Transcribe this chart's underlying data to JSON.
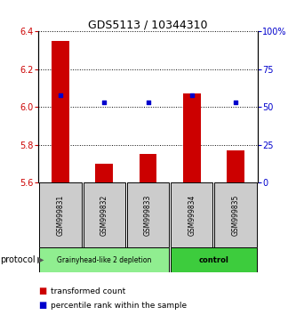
{
  "title": "GDS5113 / 10344310",
  "samples": [
    "GSM999831",
    "GSM999832",
    "GSM999833",
    "GSM999834",
    "GSM999835"
  ],
  "red_values": [
    6.35,
    5.7,
    5.75,
    6.07,
    5.77
  ],
  "blue_values": [
    58,
    53,
    53,
    58,
    53
  ],
  "ylim_left": [
    5.6,
    6.4
  ],
  "ylim_right": [
    0,
    100
  ],
  "yticks_left": [
    5.6,
    5.8,
    6.0,
    6.2,
    6.4
  ],
  "yticks_right": [
    0,
    25,
    50,
    75,
    100
  ],
  "ytick_labels_right": [
    "0",
    "25",
    "50",
    "75",
    "100%"
  ],
  "baseline": 5.6,
  "group1_samples": [
    0,
    1,
    2
  ],
  "group2_samples": [
    3,
    4
  ],
  "group1_label": "Grainyhead-like 2 depletion",
  "group2_label": "control",
  "group1_color": "#90EE90",
  "group2_color": "#3DCC3D",
  "red_color": "#CC0000",
  "blue_color": "#0000CC",
  "bar_width": 0.4,
  "protocol_label": "protocol",
  "legend_red": "transformed count",
  "legend_blue": "percentile rank within the sample",
  "sample_box_color": "#CCCCCC",
  "title_fontsize": 9
}
